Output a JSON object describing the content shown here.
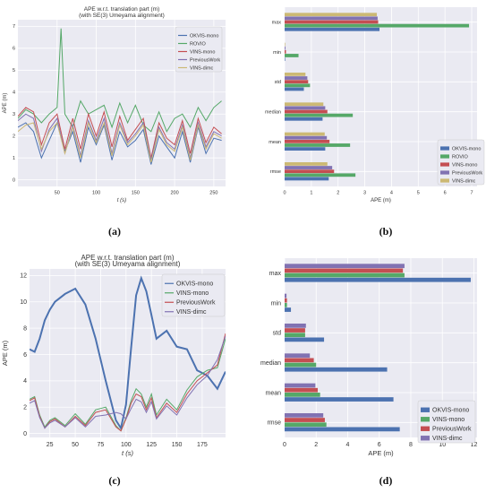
{
  "chart_data": [
    {
      "type": "line",
      "panel_label": "(a)",
      "title": "APE w.r.t. translation part (m)",
      "subtitle": "(with SE(3) Umeyama alignment)",
      "xlabel": "t (s)",
      "ylabel": "APE (m)",
      "xlim": [
        0,
        265
      ],
      "ylim": [
        -0.3,
        7.3
      ],
      "xticks": [
        50,
        100,
        150,
        200,
        250
      ],
      "yticks": [
        0,
        1,
        2,
        3,
        4,
        5,
        6,
        7
      ],
      "grid": true,
      "legend_position": "top-right",
      "series": [
        {
          "name": "OKVIS-mono",
          "color": "#4c72b0",
          "x": [
            0,
            10,
            20,
            30,
            40,
            50,
            60,
            70,
            80,
            90,
            100,
            110,
            120,
            130,
            140,
            150,
            160,
            170,
            180,
            190,
            200,
            210,
            220,
            230,
            240,
            250,
            260
          ],
          "y": [
            2.4,
            2.6,
            2.2,
            1.0,
            1.8,
            2.6,
            1.3,
            2.2,
            0.8,
            2.4,
            1.6,
            2.5,
            0.9,
            2.2,
            1.5,
            1.8,
            2.3,
            0.7,
            2.0,
            1.5,
            1.0,
            2.2,
            0.8,
            2.4,
            1.2,
            1.9,
            1.8
          ]
        },
        {
          "name": "ROVIO",
          "color": "#55a868",
          "x": [
            0,
            10,
            20,
            30,
            40,
            50,
            55,
            60,
            70,
            80,
            90,
            100,
            110,
            120,
            130,
            140,
            150,
            160,
            170,
            180,
            190,
            200,
            210,
            220,
            230,
            240,
            250,
            260
          ],
          "y": [
            2.8,
            3.2,
            3.0,
            2.6,
            3.0,
            3.3,
            6.9,
            3.0,
            2.4,
            3.6,
            3.0,
            3.2,
            3.4,
            2.4,
            3.5,
            2.6,
            3.4,
            2.5,
            2.2,
            3.1,
            2.2,
            2.8,
            3.0,
            2.4,
            3.3,
            2.7,
            3.3,
            3.6
          ]
        },
        {
          "name": "VINS-mono",
          "color": "#c44e52",
          "x": [
            0,
            10,
            20,
            30,
            40,
            50,
            60,
            70,
            80,
            90,
            100,
            110,
            120,
            130,
            140,
            150,
            160,
            170,
            180,
            190,
            200,
            210,
            220,
            230,
            240,
            250,
            260
          ],
          "y": [
            2.9,
            3.3,
            3.1,
            1.6,
            2.6,
            3.0,
            1.4,
            2.8,
            1.4,
            3.0,
            2.0,
            3.1,
            1.5,
            2.9,
            1.8,
            2.3,
            2.8,
            1.0,
            2.6,
            1.9,
            1.6,
            2.7,
            1.2,
            2.8,
            1.7,
            2.4,
            2.1
          ]
        },
        {
          "name": "PreviousWork",
          "color": "#8172b2",
          "x": [
            0,
            10,
            20,
            30,
            40,
            50,
            60,
            70,
            80,
            90,
            100,
            110,
            120,
            130,
            140,
            150,
            160,
            170,
            180,
            190,
            200,
            210,
            220,
            230,
            240,
            250,
            260
          ],
          "y": [
            2.7,
            3.0,
            2.8,
            1.3,
            2.3,
            2.8,
            1.2,
            2.5,
            1.1,
            2.7,
            1.8,
            2.8,
            1.2,
            2.6,
            1.7,
            2.1,
            2.6,
            0.9,
            2.4,
            1.7,
            1.4,
            2.5,
            1.0,
            2.6,
            1.5,
            2.2,
            2.0
          ]
        },
        {
          "name": "VINS-dimc",
          "color": "#ccb974",
          "x": [
            0,
            10,
            20,
            30,
            40,
            50,
            60,
            70,
            80,
            90,
            100,
            110,
            120,
            130,
            140,
            150,
            160,
            170,
            180,
            190,
            200,
            210,
            220,
            230,
            240,
            250,
            260
          ],
          "y": [
            2.2,
            2.5,
            2.6,
            1.4,
            2.2,
            2.6,
            1.2,
            2.4,
            1.0,
            2.6,
            1.7,
            2.6,
            1.1,
            2.5,
            1.6,
            2.0,
            2.5,
            0.8,
            2.3,
            1.6,
            1.3,
            2.4,
            0.9,
            2.5,
            1.4,
            2.1,
            1.9
          ]
        }
      ]
    },
    {
      "type": "bar",
      "orientation": "horizontal",
      "panel_label": "(b)",
      "xlabel": "APE (m)",
      "xlim": [
        0,
        7.2
      ],
      "xticks": [
        0,
        1,
        2,
        3,
        4,
        5,
        6,
        7
      ],
      "categories": [
        "max",
        "min",
        "std",
        "median",
        "mean",
        "rmse"
      ],
      "grid": true,
      "legend_position": "bottom-right",
      "series": [
        {
          "name": "OKVIS-mono",
          "color": "#4c72b0",
          "values": [
            3.55,
            0.02,
            0.72,
            1.42,
            1.52,
            1.65
          ]
        },
        {
          "name": "ROVIO",
          "color": "#55a868",
          "values": [
            6.9,
            0.52,
            0.95,
            2.55,
            2.45,
            2.65
          ]
        },
        {
          "name": "VINS-mono",
          "color": "#c44e52",
          "values": [
            3.5,
            0.05,
            0.88,
            1.6,
            1.68,
            1.85
          ]
        },
        {
          "name": "PreviousWork",
          "color": "#8172b2",
          "values": [
            3.48,
            0.03,
            0.85,
            1.52,
            1.58,
            1.78
          ]
        },
        {
          "name": "VINS-dimc",
          "color": "#ccb974",
          "values": [
            3.45,
            0.02,
            0.78,
            1.45,
            1.5,
            1.6
          ]
        }
      ]
    },
    {
      "type": "line",
      "panel_label": "(c)",
      "title": "APE w.r.t. translation part (m)",
      "subtitle": "(with SE(3) Umeyama alignment)",
      "xlabel": "t (s)",
      "ylabel": "APE (m)",
      "xlim": [
        5,
        198
      ],
      "ylim": [
        -0.3,
        12.5
      ],
      "xticks": [
        25,
        50,
        75,
        100,
        125,
        150,
        175
      ],
      "yticks": [
        0,
        2,
        4,
        6,
        8,
        10,
        12
      ],
      "grid": true,
      "legend_position": "top-right",
      "series": [
        {
          "name": "OKVIS-mono",
          "color": "#4c72b0",
          "x": [
            5,
            10,
            15,
            20,
            25,
            30,
            40,
            50,
            60,
            70,
            80,
            90,
            95,
            100,
            105,
            110,
            115,
            120,
            125,
            130,
            140,
            150,
            160,
            170,
            180,
            190,
            198
          ],
          "y": [
            6.4,
            6.2,
            7.2,
            8.6,
            9.4,
            10.0,
            10.6,
            11.0,
            9.8,
            7.2,
            4.0,
            1.0,
            0.4,
            2.2,
            6.5,
            10.5,
            11.8,
            10.8,
            9.0,
            7.2,
            7.8,
            6.6,
            6.4,
            4.8,
            4.4,
            3.4,
            4.7
          ]
        },
        {
          "name": "VINS-mono",
          "color": "#55a868",
          "x": [
            5,
            10,
            15,
            20,
            25,
            30,
            40,
            50,
            60,
            70,
            80,
            90,
            95,
            100,
            105,
            110,
            115,
            120,
            125,
            130,
            140,
            150,
            160,
            170,
            180,
            190,
            198
          ],
          "y": [
            2.6,
            2.8,
            1.4,
            0.5,
            1.0,
            1.2,
            0.6,
            1.5,
            0.7,
            1.8,
            2.0,
            0.6,
            0.2,
            1.2,
            2.5,
            3.4,
            3.0,
            2.0,
            3.0,
            1.4,
            2.6,
            1.8,
            3.3,
            4.3,
            4.8,
            5.0,
            7.2
          ]
        },
        {
          "name": "PreviousWork",
          "color": "#c44e52",
          "x": [
            5,
            10,
            15,
            20,
            25,
            30,
            40,
            50,
            60,
            70,
            80,
            90,
            95,
            100,
            105,
            110,
            115,
            120,
            125,
            130,
            140,
            150,
            160,
            170,
            180,
            190,
            198
          ],
          "y": [
            2.5,
            2.7,
            1.3,
            0.4,
            0.9,
            1.1,
            0.5,
            1.3,
            0.6,
            1.6,
            1.8,
            0.5,
            0.2,
            1.1,
            2.3,
            3.0,
            2.8,
            1.8,
            2.7,
            1.2,
            2.3,
            1.6,
            3.0,
            4.0,
            4.6,
            5.2,
            7.6
          ]
        },
        {
          "name": "VINS-dimc",
          "color": "#8172b2",
          "x": [
            5,
            10,
            15,
            20,
            25,
            30,
            40,
            50,
            60,
            70,
            80,
            90,
            95,
            100,
            105,
            110,
            115,
            120,
            125,
            130,
            140,
            150,
            160,
            170,
            180,
            190,
            198
          ],
          "y": [
            2.3,
            2.5,
            1.2,
            0.4,
            0.8,
            1.0,
            0.5,
            1.2,
            0.5,
            1.3,
            1.4,
            1.6,
            1.5,
            1.1,
            1.9,
            2.6,
            2.4,
            1.6,
            2.4,
            1.1,
            2.1,
            1.4,
            2.7,
            3.7,
            4.4,
            5.6,
            7.4
          ]
        }
      ]
    },
    {
      "type": "bar",
      "orientation": "horizontal",
      "panel_label": "(d)",
      "xlabel": "APE (m)",
      "xlim": [
        0,
        12.2
      ],
      "xticks": [
        0,
        2,
        4,
        6,
        8,
        10,
        12
      ],
      "categories": [
        "max",
        "min",
        "std",
        "median",
        "mean",
        "rmse"
      ],
      "grid": true,
      "legend_position": "bottom-right",
      "series": [
        {
          "name": "OKVIS-mono",
          "color": "#4c72b0",
          "values": [
            11.8,
            0.4,
            2.5,
            6.5,
            6.9,
            7.3
          ]
        },
        {
          "name": "VINS-mono",
          "color": "#55a868",
          "values": [
            7.6,
            0.15,
            1.3,
            2.0,
            2.25,
            2.65
          ]
        },
        {
          "name": "PreviousWork",
          "color": "#c44e52",
          "values": [
            7.5,
            0.15,
            1.3,
            1.85,
            2.1,
            2.55
          ]
        },
        {
          "name": "VINS-dimc",
          "color": "#8172b2",
          "values": [
            7.6,
            0.12,
            1.35,
            1.6,
            1.95,
            2.45
          ]
        }
      ]
    }
  ]
}
